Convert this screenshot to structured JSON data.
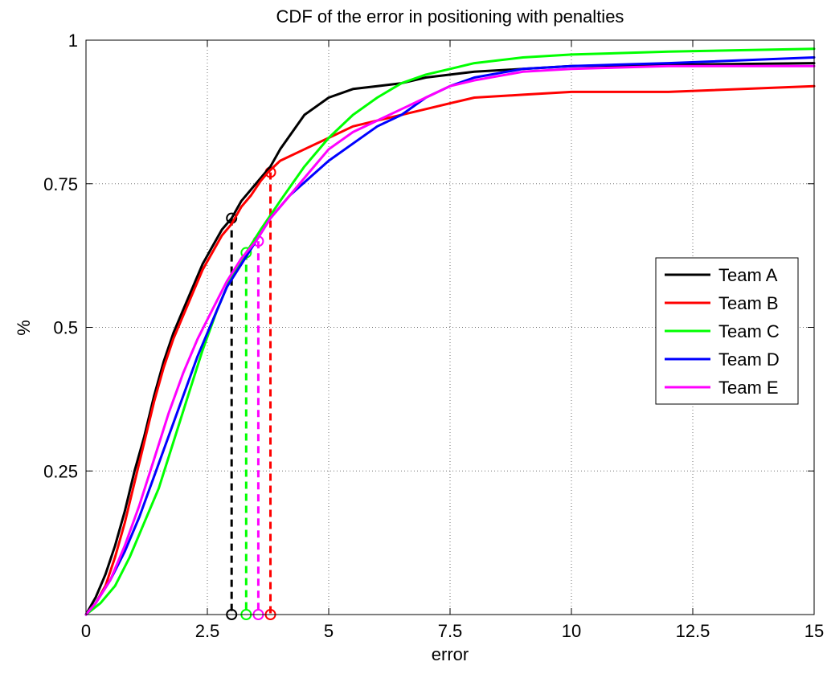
{
  "chart_data": {
    "type": "line",
    "title": "CDF of the error in positioning with penalties",
    "xlabel": "error",
    "ylabel": "%",
    "xlim": [
      0,
      15
    ],
    "ylim": [
      0,
      1
    ],
    "xticks": [
      0,
      2.5,
      5,
      7.5,
      10,
      12.5,
      15
    ],
    "xtick_labels": [
      "0",
      "2.5",
      "5",
      "7.5",
      "10",
      "12.5",
      "15"
    ],
    "yticks": [
      0.25,
      0.5,
      0.75,
      1
    ],
    "ytick_labels": [
      "0.25",
      "0.5",
      "0.75",
      "1"
    ],
    "grid": true,
    "legend_position": "right",
    "series": [
      {
        "name": "Team A",
        "color": "#000000",
        "x": [
          0,
          0.2,
          0.4,
          0.6,
          0.8,
          1.0,
          1.2,
          1.4,
          1.6,
          1.8,
          2.0,
          2.2,
          2.4,
          2.6,
          2.8,
          3.0,
          3.2,
          3.4,
          3.6,
          3.8,
          4.0,
          4.5,
          5.0,
          5.5,
          6.0,
          6.5,
          7.0,
          7.5,
          8.0,
          9.0,
          10.0,
          12.0,
          15.0
        ],
        "y": [
          0,
          0.03,
          0.07,
          0.12,
          0.18,
          0.25,
          0.31,
          0.38,
          0.44,
          0.49,
          0.53,
          0.57,
          0.61,
          0.64,
          0.67,
          0.69,
          0.72,
          0.74,
          0.76,
          0.78,
          0.81,
          0.87,
          0.9,
          0.915,
          0.92,
          0.925,
          0.935,
          0.94,
          0.945,
          0.95,
          0.955,
          0.957,
          0.96
        ]
      },
      {
        "name": "Team B",
        "color": "#ff0000",
        "x": [
          0,
          0.2,
          0.4,
          0.6,
          0.8,
          1.0,
          1.2,
          1.4,
          1.6,
          1.8,
          2.0,
          2.2,
          2.4,
          2.6,
          2.8,
          3.0,
          3.2,
          3.4,
          3.6,
          3.75,
          4.0,
          4.5,
          5.0,
          5.5,
          6.0,
          6.5,
          7.0,
          7.5,
          8.0,
          9.0,
          10.0,
          12.0,
          15.0
        ],
        "y": [
          0,
          0.02,
          0.05,
          0.1,
          0.16,
          0.23,
          0.3,
          0.37,
          0.43,
          0.48,
          0.52,
          0.56,
          0.6,
          0.63,
          0.66,
          0.68,
          0.71,
          0.73,
          0.755,
          0.77,
          0.79,
          0.81,
          0.83,
          0.85,
          0.86,
          0.87,
          0.88,
          0.89,
          0.9,
          0.905,
          0.91,
          0.91,
          0.92
        ]
      },
      {
        "name": "Team C",
        "color": "#00ff00",
        "x": [
          0,
          0.3,
          0.6,
          0.9,
          1.2,
          1.5,
          1.8,
          2.1,
          2.4,
          2.7,
          3.0,
          3.3,
          3.6,
          4.0,
          4.5,
          5.0,
          5.5,
          6.0,
          6.5,
          7.0,
          7.5,
          8.0,
          9.0,
          10.0,
          12.0,
          15.0
        ],
        "y": [
          0,
          0.02,
          0.05,
          0.1,
          0.16,
          0.22,
          0.3,
          0.38,
          0.46,
          0.53,
          0.59,
          0.63,
          0.67,
          0.72,
          0.78,
          0.83,
          0.87,
          0.9,
          0.925,
          0.94,
          0.95,
          0.96,
          0.97,
          0.975,
          0.98,
          0.985
        ]
      },
      {
        "name": "Team D",
        "color": "#0000ff",
        "x": [
          0,
          0.2,
          0.5,
          0.8,
          1.1,
          1.4,
          1.7,
          2.0,
          2.3,
          2.6,
          2.9,
          3.2,
          3.5,
          3.8,
          4.2,
          4.6,
          5.0,
          5.5,
          6.0,
          6.5,
          7.0,
          7.5,
          8.0,
          9.0,
          10.0,
          12.0,
          15.0
        ],
        "y": [
          0,
          0.02,
          0.06,
          0.11,
          0.17,
          0.24,
          0.31,
          0.38,
          0.45,
          0.51,
          0.57,
          0.61,
          0.65,
          0.69,
          0.73,
          0.76,
          0.79,
          0.82,
          0.85,
          0.87,
          0.9,
          0.92,
          0.935,
          0.95,
          0.955,
          0.96,
          0.97
        ]
      },
      {
        "name": "Team E",
        "color": "#ff00ff",
        "x": [
          0,
          0.2,
          0.5,
          0.8,
          1.1,
          1.4,
          1.7,
          2.0,
          2.3,
          2.6,
          2.9,
          3.2,
          3.5,
          3.8,
          4.2,
          4.6,
          5.0,
          5.5,
          6.0,
          6.5,
          7.0,
          7.5,
          8.0,
          9.0,
          10.0,
          12.0,
          15.0
        ],
        "y": [
          0,
          0.02,
          0.06,
          0.12,
          0.19,
          0.27,
          0.35,
          0.42,
          0.48,
          0.53,
          0.58,
          0.62,
          0.65,
          0.69,
          0.73,
          0.77,
          0.81,
          0.84,
          0.86,
          0.88,
          0.9,
          0.92,
          0.93,
          0.945,
          0.95,
          0.955,
          0.955
        ]
      }
    ],
    "annotations": [
      {
        "series": "Team A",
        "x": 3.0,
        "y": 0.69,
        "color": "#000000"
      },
      {
        "series": "Team C",
        "x": 3.3,
        "y": 0.63,
        "color": "#00ff00"
      },
      {
        "series": "Team E",
        "x": 3.55,
        "y": 0.65,
        "color": "#ff00ff"
      },
      {
        "series": "Team B",
        "x": 3.8,
        "y": 0.77,
        "color": "#ff0000"
      }
    ]
  }
}
